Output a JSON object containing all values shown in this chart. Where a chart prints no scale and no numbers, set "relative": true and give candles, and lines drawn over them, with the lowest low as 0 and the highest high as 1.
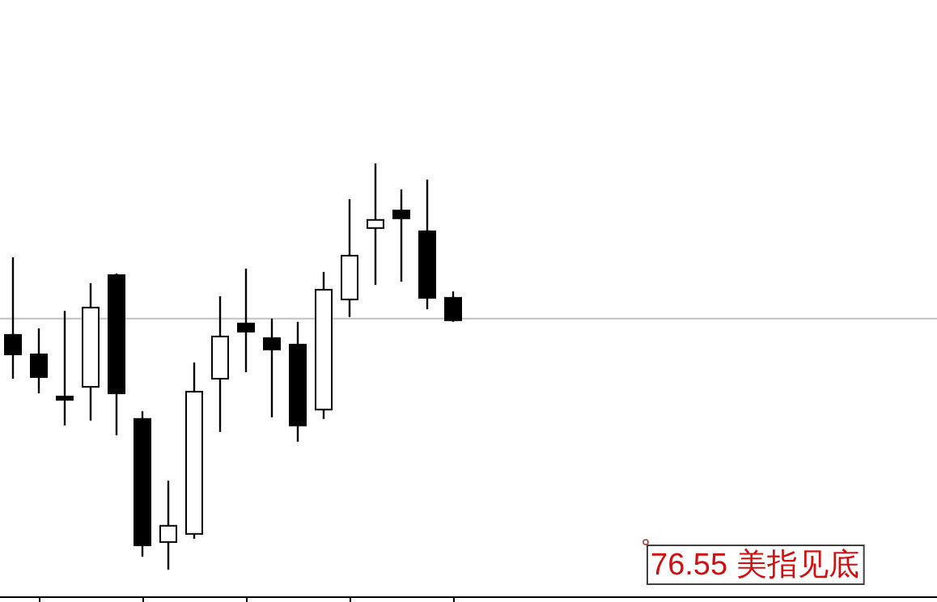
{
  "chart_data": {
    "type": "candlestick",
    "relative": true,
    "categories": [
      null,
      null,
      null,
      null,
      null,
      null,
      null,
      null,
      null,
      null,
      null,
      null,
      null,
      null,
      null,
      null,
      null,
      null
    ],
    "ohlc": [
      [
        0.578,
        0.769,
        0.47,
        0.53
      ],
      [
        0.53,
        0.594,
        0.434,
        0.474
      ],
      [
        0.426,
        0.637,
        0.355,
        0.418
      ],
      [
        0.45,
        0.705,
        0.367,
        0.645
      ],
      [
        0.725,
        0.729,
        0.331,
        0.434
      ],
      [
        0.371,
        0.39,
        0.032,
        0.06
      ],
      [
        0.068,
        0.219,
        0,
        0.108
      ],
      [
        0.088,
        0.51,
        0.076,
        0.438
      ],
      [
        0.47,
        0.673,
        0.339,
        0.574
      ],
      [
        0.606,
        0.741,
        0.486,
        0.586
      ],
      [
        0.57,
        0.618,
        0.375,
        0.542
      ],
      [
        0.554,
        0.61,
        0.315,
        0.355
      ],
      [
        0.394,
        0.733,
        0.371,
        0.689
      ],
      [
        0.665,
        0.912,
        0.622,
        0.773
      ],
      [
        0.841,
        1,
        0.701,
        0.861
      ],
      [
        0.884,
        0.936,
        0.709,
        0.865
      ],
      [
        0.833,
        0.96,
        0.641,
        0.669
      ],
      [
        0.669,
        0.685,
        0.61,
        0.614
      ]
    ],
    "ref_lines": [
      {
        "axis": "y",
        "value": 0.618,
        "color": "#c0c0c0"
      }
    ],
    "annotations": [
      "76.55 美指见底"
    ]
  }
}
